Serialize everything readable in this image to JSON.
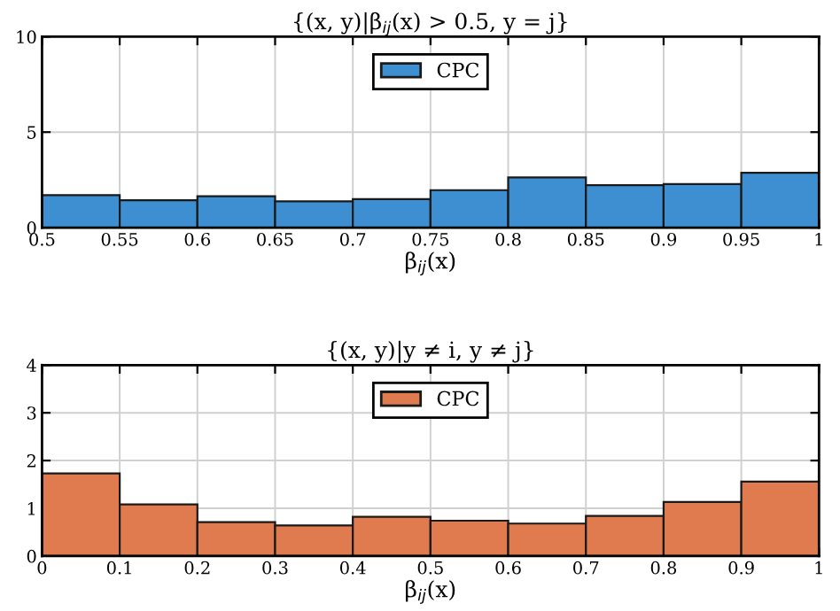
{
  "chart_data": [
    {
      "type": "histogram",
      "title": "{(x, y)|β$_{ij}$(x) > 0.5, y = j}",
      "xlabel": "β$_{ij}$(x)",
      "bins": [
        0.5,
        0.55,
        0.6,
        0.65,
        0.7,
        0.75,
        0.8,
        0.85,
        0.9,
        0.95,
        1
      ],
      "series": [
        {
          "name": "CPC",
          "color": "#3d8fd1",
          "values": [
            1.7,
            1.43,
            1.64,
            1.37,
            1.49,
            1.96,
            2.63,
            2.22,
            2.28,
            2.87
          ]
        }
      ],
      "xlim": [
        0.5,
        1
      ],
      "ylim": [
        0,
        10
      ],
      "xticks": [
        0.5,
        0.55,
        0.6,
        0.65,
        0.7,
        0.75,
        0.8,
        0.85,
        0.9,
        0.95,
        1
      ],
      "yticks": [
        0,
        5,
        10
      ],
      "grid": true,
      "legend": "top"
    },
    {
      "type": "histogram",
      "title": "{(x, y)|y ≠ i, y ≠ j}",
      "xlabel": "β$_{ij}$(x)",
      "bins": [
        0,
        0.1,
        0.2,
        0.3,
        0.4,
        0.5,
        0.6,
        0.7,
        0.8,
        0.9,
        1
      ],
      "series": [
        {
          "name": "CPC",
          "color": "#e07b4f",
          "values": [
            1.73,
            1.08,
            0.71,
            0.64,
            0.82,
            0.74,
            0.68,
            0.84,
            1.13,
            1.56
          ]
        }
      ],
      "xlim": [
        0,
        1
      ],
      "ylim": [
        0,
        4
      ],
      "xticks": [
        0,
        0.1,
        0.2,
        0.3,
        0.4,
        0.5,
        0.6,
        0.7,
        0.8,
        0.9,
        1
      ],
      "yticks": [
        0,
        1,
        2,
        3,
        4
      ],
      "grid": true,
      "legend": "top"
    }
  ]
}
